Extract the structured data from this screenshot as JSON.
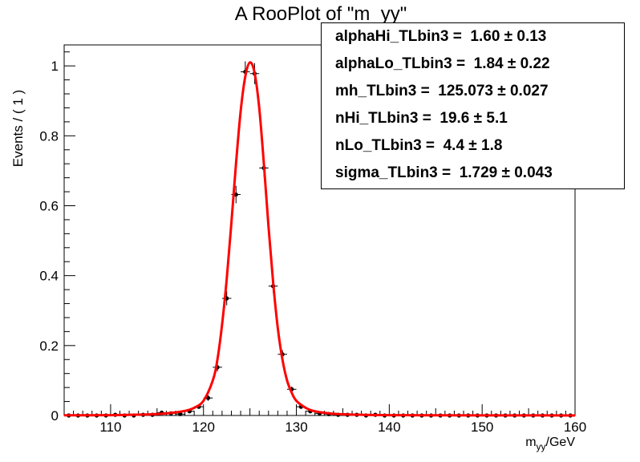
{
  "chart_data": {
    "type": "scatter",
    "title": "A RooPlot of \"m_yy\"",
    "xlabel": "m",
    "xlabel_sub": "yy",
    "xlabel_unit": "/GeV",
    "ylabel": "Events / ( 1 )",
    "xlim": [
      105,
      160
    ],
    "ylim": [
      0,
      1.06
    ],
    "xticks": [
      "110",
      "120",
      "130",
      "140",
      "150",
      "160"
    ],
    "yticks": [
      "0",
      "0.2",
      "0.4",
      "0.6",
      "0.8",
      "1"
    ],
    "xtick_values": [
      110,
      120,
      130,
      140,
      150,
      160
    ],
    "ytick_values": [
      0,
      0.2,
      0.4,
      0.6,
      0.8,
      1
    ],
    "grid": false,
    "series": [
      {
        "kind": "points",
        "color": "#000000",
        "x": [
          105.5,
          106.5,
          107.5,
          108.5,
          109.5,
          110.5,
          111.5,
          112.5,
          113.5,
          114.5,
          115.5,
          116.5,
          117.5,
          118.5,
          119.5,
          120.5,
          121.5,
          122.5,
          123.5,
          124.5,
          125.5,
          126.5,
          127.5,
          128.5,
          129.5,
          130.5,
          131.5,
          132.5,
          133.5,
          134.5,
          135.5,
          136.5,
          137.5,
          138.5,
          139.5,
          140.5,
          141.5,
          142.5,
          143.5,
          144.5,
          145.5,
          146.5,
          147.5,
          148.5,
          149.5,
          150.5,
          151.5,
          152.5,
          153.5,
          154.5,
          155.5,
          156.5,
          157.5,
          158.5,
          159.5
        ],
        "y": [
          0,
          0,
          0,
          0,
          0,
          0.002,
          0,
          0,
          0.002,
          0.002,
          0.008,
          0.006,
          0.004,
          0.012,
          0.025,
          0.05,
          0.138,
          0.335,
          0.632,
          0.983,
          0.978,
          0.708,
          0.37,
          0.175,
          0.075,
          0.025,
          0.012,
          0.006,
          0.004,
          0.002,
          0.002,
          0.002,
          0,
          0.002,
          0,
          0,
          0,
          0,
          0,
          0,
          0,
          0,
          0,
          0,
          0,
          0,
          0,
          0,
          0,
          0,
          0,
          0,
          0,
          0,
          0
        ],
        "yerr": [
          0,
          0,
          0,
          0,
          0,
          0.002,
          0,
          0,
          0.002,
          0.002,
          0.004,
          0.003,
          0.003,
          0.004,
          0.006,
          0.008,
          0.012,
          0.02,
          0.025,
          0.03,
          0.03,
          0.025,
          0.018,
          0.012,
          0.008,
          0.005,
          0.004,
          0.003,
          0.003,
          0.002,
          0.002,
          0.002,
          0,
          0.002,
          0,
          0,
          0,
          0,
          0,
          0,
          0,
          0,
          0,
          0,
          0,
          0,
          0,
          0,
          0,
          0,
          0,
          0,
          0,
          0,
          0
        ]
      },
      {
        "kind": "curve",
        "color": "#ff0000",
        "x": [
          105,
          110,
          114,
          116,
          118,
          119,
          120,
          121,
          121.5,
          122,
          122.5,
          123,
          123.5,
          124,
          124.5,
          125,
          125.5,
          126,
          126.5,
          127,
          127.5,
          128,
          128.5,
          129,
          129.5,
          130,
          131,
          132,
          134,
          137,
          140,
          145,
          150,
          155,
          160
        ],
        "y": [
          0.0005,
          0.001,
          0.003,
          0.006,
          0.013,
          0.022,
          0.042,
          0.1,
          0.16,
          0.26,
          0.39,
          0.55,
          0.72,
          0.87,
          0.97,
          1.01,
          0.98,
          0.88,
          0.72,
          0.54,
          0.38,
          0.25,
          0.16,
          0.1,
          0.065,
          0.042,
          0.022,
          0.012,
          0.005,
          0.002,
          0.001,
          0.0005,
          0.0003,
          0.0002,
          0.0001
        ]
      }
    ],
    "legend": "top-right",
    "stats": [
      {
        "name": "alphaHi_TLbin3",
        "value": "1.60",
        "error": "0.13"
      },
      {
        "name": "alphaLo_TLbin3",
        "value": "1.84",
        "error": "0.22"
      },
      {
        "name": "mh_TLbin3",
        "value": "125.073",
        "error": "0.027"
      },
      {
        "name": "nHi_TLbin3",
        "value": "19.6",
        "error": "5.1"
      },
      {
        "name": "nLo_TLbin3",
        "value": "4.4",
        "error": "1.8"
      },
      {
        "name": "sigma_TLbin3",
        "value": "1.729",
        "error": "0.043"
      }
    ]
  }
}
